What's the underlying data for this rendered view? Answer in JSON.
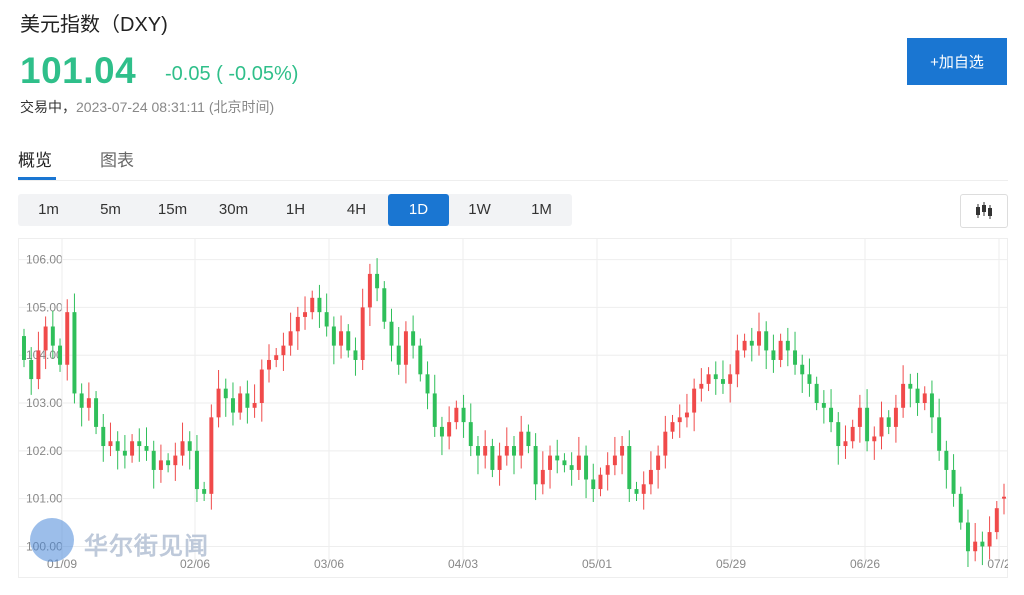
{
  "header": {
    "title": "美元指数（DXY)",
    "price": "101.04",
    "change": "-0.05 ( -0.05%)",
    "status_label": "交易中，",
    "timestamp": "2023-07-24 08:31:11 (北京时间)",
    "add_button": "+加自选"
  },
  "tabs": [
    {
      "label": "概览",
      "active": true
    },
    {
      "label": "图表",
      "active": false
    }
  ],
  "periods": [
    "1m",
    "5m",
    "15m",
    "30m",
    "1H",
    "4H",
    "1D",
    "1W",
    "1M"
  ],
  "active_period": "1D",
  "chart_type_icon": "candlestick-icon",
  "watermark": "华尔街见闻",
  "colors": {
    "up": "#f04a4a",
    "down": "#2fbf5a",
    "accent": "#1a76d2",
    "price": "#2fbf8a"
  },
  "chart_data": {
    "type": "candlestick",
    "ylim": [
      99.8,
      106.2
    ],
    "yticks": [
      "106.00",
      "105.00",
      "104.00",
      "103.00",
      "102.00",
      "101.00",
      "100.00"
    ],
    "xticks": [
      "01/09",
      "02/06",
      "03/06",
      "04/03",
      "05/01",
      "05/29",
      "06/26",
      "07/2"
    ],
    "grid": true,
    "close": [
      103.9,
      103.5,
      104.1,
      104.6,
      104.2,
      103.8,
      104.9,
      103.2,
      102.9,
      103.1,
      102.5,
      102.1,
      102.2,
      102.0,
      101.9,
      102.2,
      102.1,
      102.0,
      101.6,
      101.8,
      101.7,
      101.9,
      102.2,
      102.0,
      101.2,
      101.1,
      102.7,
      103.3,
      103.1,
      102.8,
      103.2,
      102.9,
      103.0,
      103.7,
      103.9,
      104.0,
      104.2,
      104.5,
      104.8,
      104.9,
      105.2,
      104.9,
      104.6,
      104.2,
      104.5,
      104.1,
      103.9,
      105.0,
      105.7,
      105.4,
      104.7,
      104.2,
      103.8,
      104.5,
      104.2,
      103.6,
      103.2,
      102.5,
      102.3,
      102.6,
      102.9,
      102.6,
      102.1,
      101.9,
      102.1,
      101.6,
      101.9,
      102.1,
      101.9,
      102.4,
      102.1,
      101.3,
      101.6,
      101.9,
      101.8,
      101.7,
      101.6,
      101.9,
      101.4,
      101.2,
      101.5,
      101.7,
      101.9,
      102.1,
      101.2,
      101.1,
      101.3,
      101.6,
      101.9,
      102.4,
      102.6,
      102.7,
      102.8,
      103.3,
      103.4,
      103.6,
      103.5,
      103.4,
      103.6,
      104.1,
      104.3,
      104.2,
      104.5,
      104.1,
      103.9,
      104.3,
      104.1,
      103.8,
      103.6,
      103.4,
      103.0,
      102.9,
      102.6,
      102.1,
      102.2,
      102.5,
      102.9,
      102.2,
      102.3,
      102.7,
      102.5,
      102.9,
      103.4,
      103.3,
      103.0,
      103.2,
      102.7,
      102.0,
      101.6,
      101.1,
      100.5,
      99.9,
      100.1,
      100.0,
      100.3,
      100.8,
      101.04
    ],
    "open": [
      104.4,
      103.9,
      103.5,
      104.1,
      104.6,
      104.2,
      103.8,
      104.9,
      103.2,
      102.9,
      103.1,
      102.5,
      102.1,
      102.2,
      102.0,
      101.9,
      102.2,
      102.1,
      102.0,
      101.6,
      101.8,
      101.7,
      101.9,
      102.2,
      102.0,
      101.2,
      101.1,
      102.7,
      103.3,
      103.1,
      102.8,
      103.2,
      102.9,
      103.0,
      103.7,
      103.9,
      104.0,
      104.2,
      104.5,
      104.8,
      104.9,
      105.2,
      104.9,
      104.6,
      104.2,
      104.5,
      104.1,
      103.9,
      105.0,
      105.7,
      105.4,
      104.7,
      104.2,
      103.8,
      104.5,
      104.2,
      103.6,
      103.2,
      102.5,
      102.3,
      102.6,
      102.9,
      102.6,
      102.1,
      101.9,
      102.1,
      101.6,
      101.9,
      102.1,
      101.9,
      102.4,
      102.1,
      101.3,
      101.6,
      101.9,
      101.8,
      101.7,
      101.6,
      101.9,
      101.4,
      101.2,
      101.5,
      101.7,
      101.9,
      102.1,
      101.2,
      101.1,
      101.3,
      101.6,
      101.9,
      102.4,
      102.6,
      102.7,
      102.8,
      103.3,
      103.4,
      103.6,
      103.5,
      103.4,
      103.6,
      104.1,
      104.3,
      104.2,
      104.5,
      104.1,
      103.9,
      104.3,
      104.1,
      103.8,
      103.6,
      103.4,
      103.0,
      102.9,
      102.6,
      102.1,
      102.2,
      102.5,
      102.9,
      102.2,
      102.3,
      102.7,
      102.5,
      102.9,
      103.4,
      103.3,
      103.0,
      103.2,
      102.7,
      102.0,
      101.6,
      101.1,
      100.5,
      99.9,
      100.1,
      100.0,
      100.3,
      101.0
    ]
  }
}
